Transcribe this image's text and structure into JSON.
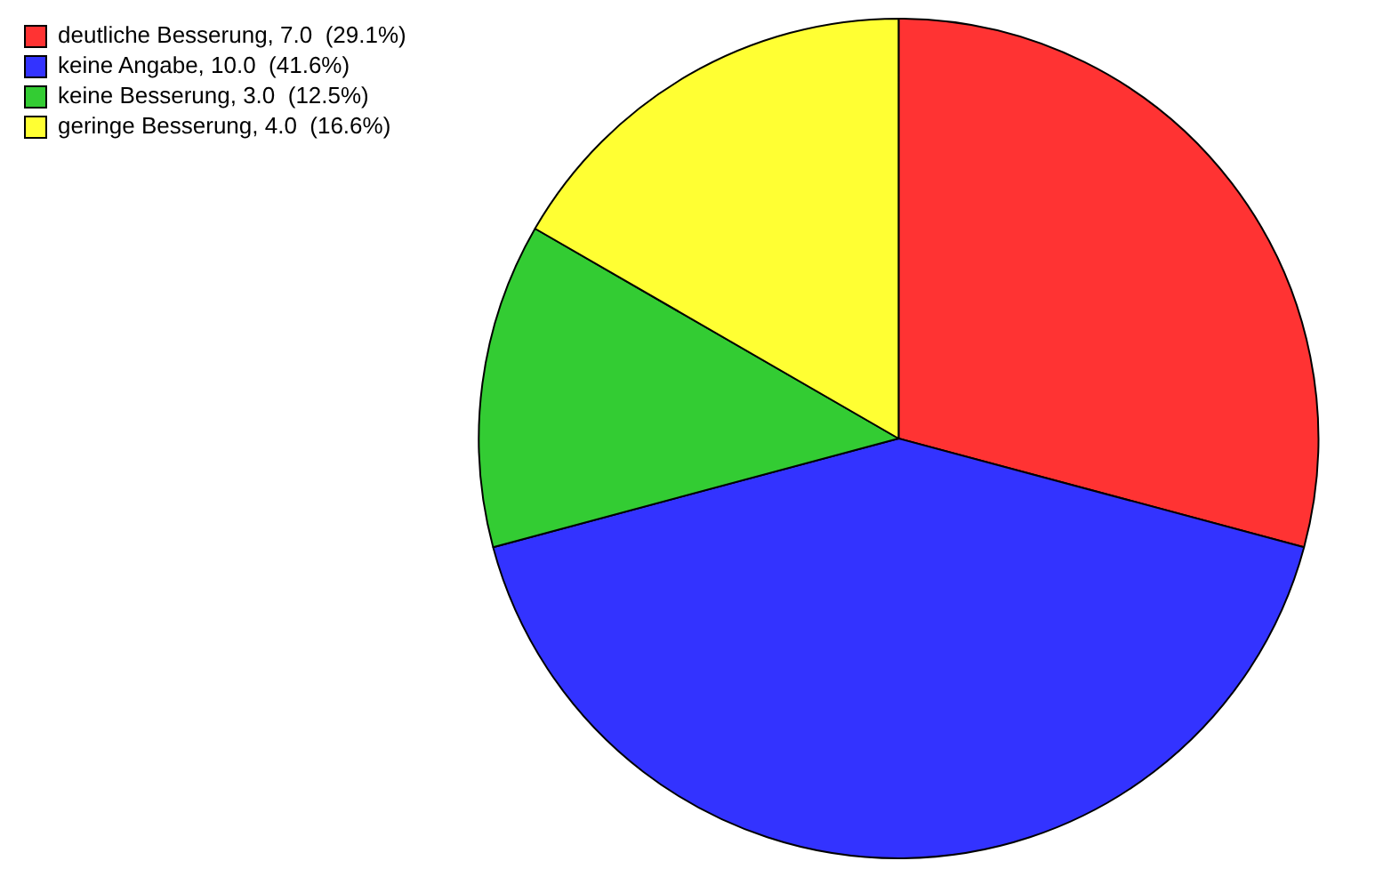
{
  "chart_data": {
    "type": "pie",
    "categories": [
      "deutliche Besserung",
      "keine Angabe",
      "keine Besserung",
      "geringe Besserung"
    ],
    "values": [
      7.0,
      10.0,
      3.0,
      4.0
    ],
    "value_labels": [
      "7.0  (29.1%)",
      "10.0  (41.6%)",
      "3.0  (12.5%)",
      "4.0  (16.6%)"
    ],
    "colors": [
      "#ff3333",
      "#3333ff",
      "#33cc33",
      "#ffff33"
    ],
    "legend": "top left"
  }
}
